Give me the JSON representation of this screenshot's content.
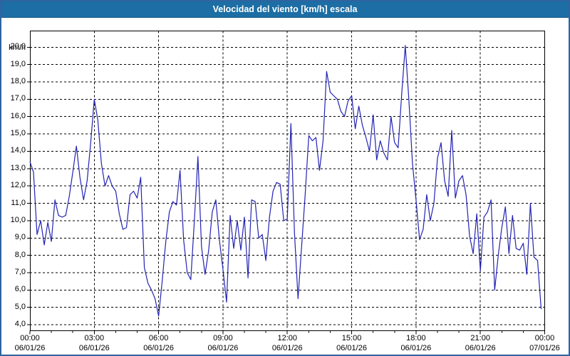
{
  "window": {
    "title": "Velocidad del viento [km/h] escala"
  },
  "chart": {
    "y_axis": {
      "unit_label": "km/h",
      "tick_labels": [
        "20,0",
        "19,0",
        "18,0",
        "17,0",
        "16,0",
        "15,0",
        "14,0",
        "13,0",
        "12,0",
        "11,0",
        "10,0",
        "9,0",
        "8,0",
        "7,0",
        "6,0",
        "5,0",
        "4,0"
      ]
    },
    "x_axis": {
      "ticks": [
        {
          "time": "00:00",
          "date": "06/01/26"
        },
        {
          "time": "03:00",
          "date": "06/01/26"
        },
        {
          "time": "06:00",
          "date": "06/01/26"
        },
        {
          "time": "09:00",
          "date": "06/01/26"
        },
        {
          "time": "12:00",
          "date": "06/01/26"
        },
        {
          "time": "15:00",
          "date": "06/01/26"
        },
        {
          "time": "18:00",
          "date": "06/01/26"
        },
        {
          "time": "21:00",
          "date": "06/01/26"
        },
        {
          "time": "00:00",
          "date": "07/01/26"
        }
      ]
    }
  },
  "chart_data": {
    "type": "line",
    "title": "Velocidad del viento [km/h] escala",
    "ylabel": "km/h",
    "ylim": [
      4,
      20
    ],
    "y_gridline_step": 1,
    "x_range_hours": [
      0,
      24
    ],
    "x_major_tick_hours": 3,
    "x_minor_tick_hours": 1,
    "x_start_label": "00:00 06/01/26",
    "x_end_label": "00:00 07/01/26",
    "sample_interval_minutes": 10,
    "grid": "dashed",
    "legend": "none",
    "line_color": "#2323b4",
    "values": [
      13.4,
      12.8,
      9.2,
      10.0,
      8.6,
      9.9,
      8.8,
      11.2,
      10.3,
      10.2,
      10.3,
      11.4,
      12.8,
      14.3,
      12.5,
      11.2,
      12.3,
      14.5,
      17.0,
      15.8,
      13.3,
      12.0,
      12.6,
      12.0,
      11.7,
      10.4,
      9.5,
      9.6,
      11.5,
      11.7,
      11.3,
      12.5,
      7.3,
      6.4,
      6.0,
      5.5,
      4.5,
      6.5,
      8.8,
      10.5,
      11.1,
      10.9,
      12.9,
      8.9,
      7.0,
      6.6,
      10.0,
      13.7,
      8.5,
      6.9,
      8.3,
      10.5,
      11.2,
      8.9,
      7.2,
      5.3,
      10.3,
      8.4,
      10.0,
      8.3,
      10.2,
      6.7,
      11.2,
      11.1,
      9.0,
      9.2,
      7.7,
      10.2,
      11.7,
      12.2,
      12.1,
      10.0,
      10.1,
      15.6,
      9.3,
      5.5,
      8.5,
      11.5,
      14.9,
      14.6,
      14.8,
      12.9,
      14.6,
      18.6,
      17.4,
      17.2,
      17.0,
      16.3,
      16.0,
      16.9,
      17.2,
      15.3,
      16.6,
      15.5,
      14.8,
      14.0,
      16.1,
      13.5,
      14.6,
      13.9,
      13.5,
      16.0,
      14.5,
      14.2,
      17.3,
      20.1,
      17.0,
      13.3,
      11.2,
      8.9,
      9.5,
      11.5,
      10.0,
      11.0,
      13.6,
      14.5,
      12.3,
      11.4,
      15.2,
      11.3,
      12.3,
      12.6,
      11.5,
      9.1,
      8.1,
      10.4,
      7.1,
      10.2,
      10.5,
      11.2,
      6.0,
      8.0,
      9.6,
      10.8,
      8.1,
      10.3,
      8.4,
      8.3,
      8.7,
      6.9,
      11.0,
      7.9,
      7.7,
      4.9
    ]
  },
  "colors": {
    "title_bar": "#1c6ea4",
    "frame_border": "#2f64a0",
    "line": "#2323b4",
    "grid": "#000000",
    "plot_background": "#ffffff"
  }
}
